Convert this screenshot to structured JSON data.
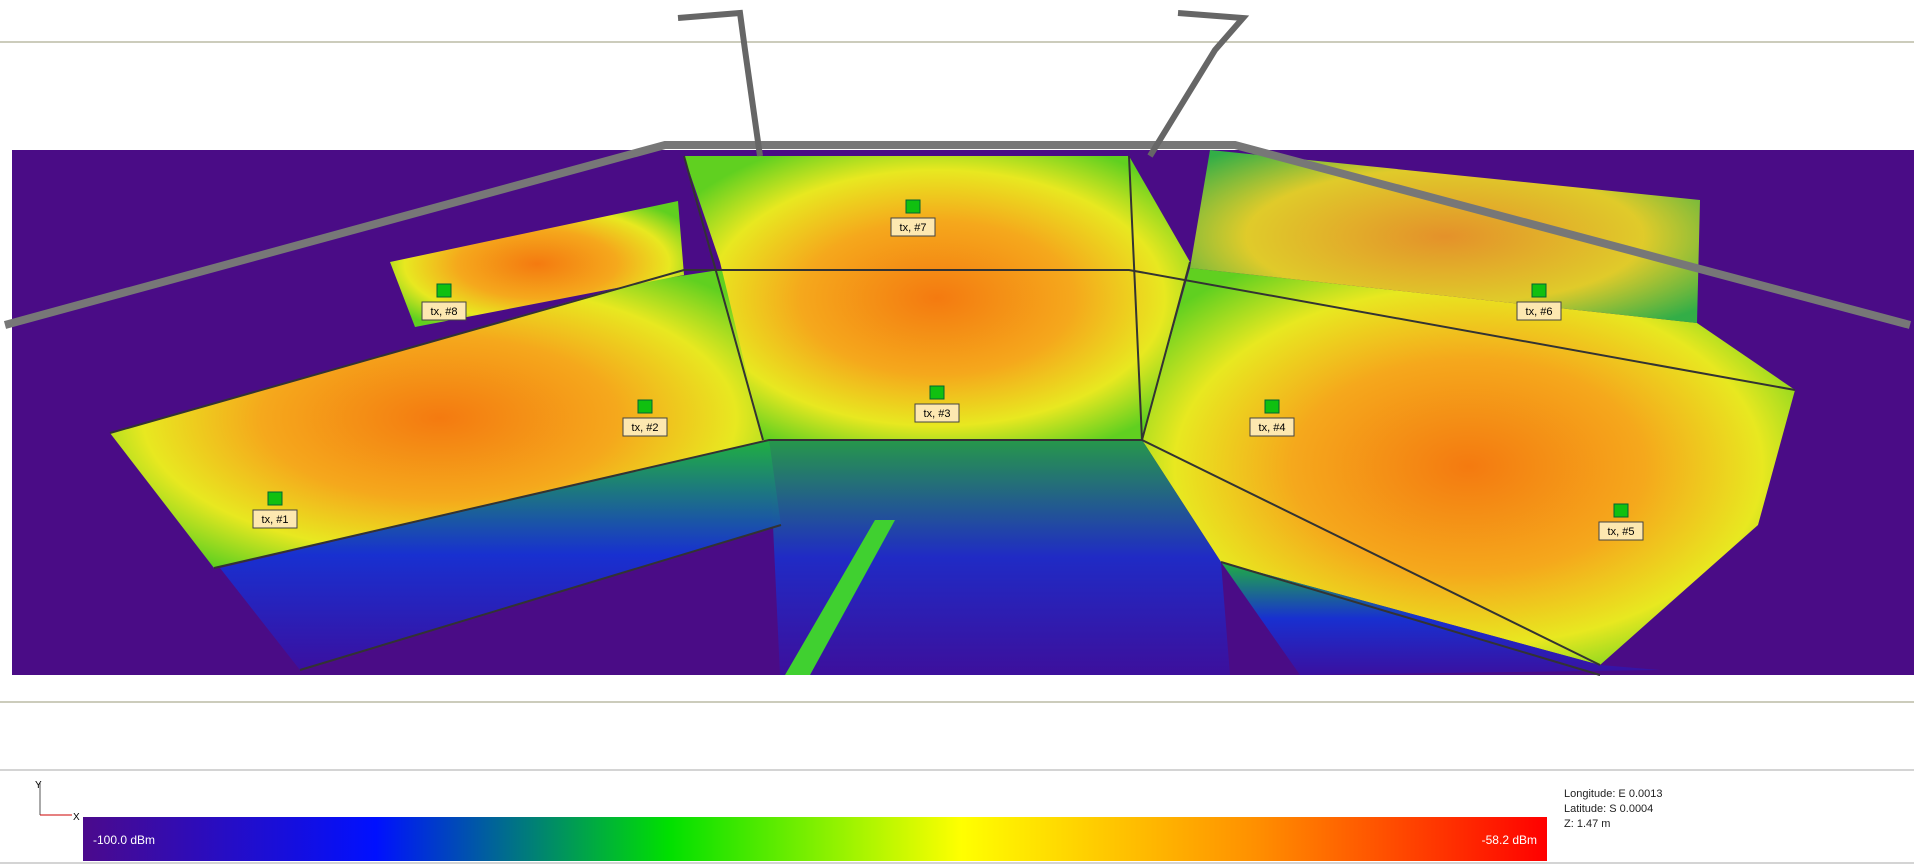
{
  "transmitters": [
    {
      "label": "tx, #1"
    },
    {
      "label": "tx, #2"
    },
    {
      "label": "tx, #3"
    },
    {
      "label": "tx, #4"
    },
    {
      "label": "tx, #5"
    },
    {
      "label": "tx, #6"
    },
    {
      "label": "tx, #7"
    },
    {
      "label": "tx, #8"
    }
  ],
  "colorbar": {
    "min_label": "-100.0 dBm",
    "max_label": "-58.2 dBm"
  },
  "coordinates": {
    "longitude": "Longitude: E  0.0013",
    "latitude": "Latitude: S  0.0004",
    "z": "Z: 1.47 m"
  },
  "axes": {
    "y": "Y",
    "x": "X"
  }
}
